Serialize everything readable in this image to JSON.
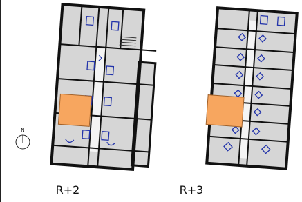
{
  "plans": [
    {
      "label": "R+2"
    },
    {
      "label": "R+3"
    }
  ],
  "compass": {
    "label": "N"
  }
}
